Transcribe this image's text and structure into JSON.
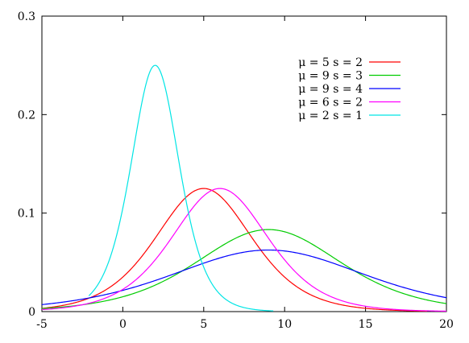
{
  "chart_data": {
    "type": "line",
    "title": "",
    "xlabel": "",
    "ylabel": "",
    "xlim": [
      -5,
      20
    ],
    "ylim": [
      0,
      0.3
    ],
    "x_ticks": [
      -5,
      0,
      5,
      10,
      15,
      20
    ],
    "y_ticks": [
      0,
      0.1,
      0.2,
      0.3
    ],
    "x_tick_labels": [
      "-5",
      "0",
      "5",
      "10",
      "15",
      "20"
    ],
    "y_tick_labels": [
      "0",
      "0.1",
      "0.2",
      "0.3"
    ],
    "grid": false,
    "legend_position": "top-right",
    "series": [
      {
        "name": "μ = 5 s = 2",
        "color": "#ff0000",
        "x_range": [
          -5,
          18.8
        ],
        "peak": {
          "x": 5,
          "y": 0.125
        }
      },
      {
        "name": "μ = 9 s = 3",
        "color": "#00cc00",
        "x_range": [
          -5,
          20
        ],
        "peak": {
          "x": 9,
          "y": 0.0833
        }
      },
      {
        "name": "μ = 9 s = 4",
        "color": "#0000ff",
        "x_range": [
          -5,
          20
        ],
        "peak": {
          "x": 9,
          "y": 0.0625
        }
      },
      {
        "name": "μ = 6 s = 2",
        "color": "#ff00ff",
        "x_range": [
          -5,
          20
        ],
        "peak": {
          "x": 6,
          "y": 0.125
        }
      },
      {
        "name": "μ = 2 s = 1",
        "color": "#00e5e5",
        "x_range": [
          -2.1,
          9.3
        ],
        "peak": {
          "x": 2,
          "y": 0.25
        }
      }
    ]
  }
}
